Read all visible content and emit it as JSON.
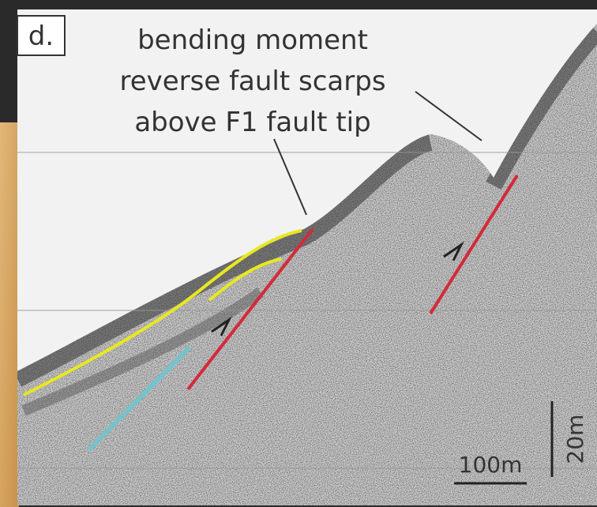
{
  "panel_label": "d.",
  "annotation": {
    "lines": [
      "bending moment",
      "reverse fault scarps",
      "above F1 fault tip"
    ]
  },
  "scale_bars": {
    "horizontal": "100m",
    "vertical": "20m"
  }
}
